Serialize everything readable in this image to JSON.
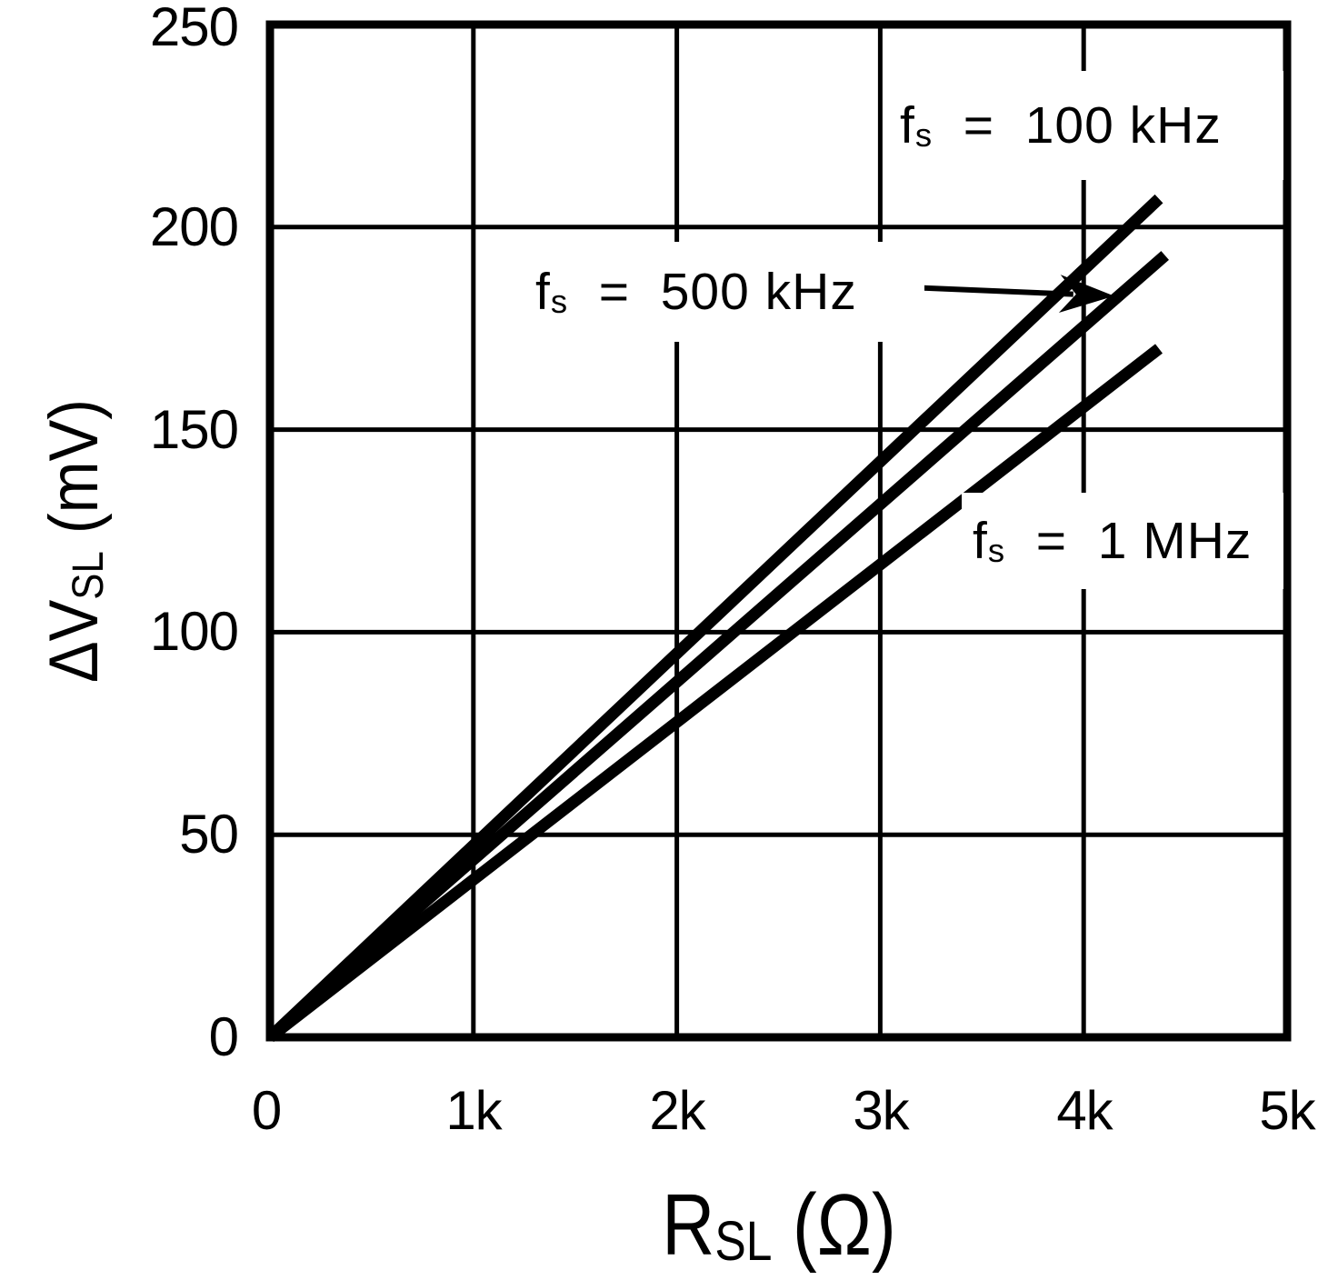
{
  "colors": {
    "ink": "#000000",
    "paper": "#ffffff"
  },
  "chart_data": {
    "type": "line",
    "title": "",
    "xlabel": "R_SL (Ω)",
    "ylabel": "ΔV_SL (mV)",
    "xlabel_parts": {
      "main": "R",
      "sub": "SL",
      "rest": " (Ω)"
    },
    "ylabel_parts": {
      "main": "ΔV",
      "sub": "SL",
      "rest": " (mV)"
    },
    "xlim": [
      0,
      5000
    ],
    "ylim": [
      0,
      250
    ],
    "x_ticks": [
      0,
      1000,
      2000,
      3000,
      4000,
      5000
    ],
    "x_tick_labels": [
      "0",
      "1k",
      "2k",
      "3k",
      "4k",
      "5k"
    ],
    "y_ticks": [
      0,
      50,
      100,
      150,
      200,
      250
    ],
    "y_tick_labels": [
      "0",
      "50",
      "100",
      "150",
      "200",
      "250"
    ],
    "grid": true,
    "legend_position": "inline-labels",
    "series": [
      {
        "name": "fs = 100 kHz",
        "label_parts": {
          "sym": "f",
          "sub": "s",
          "eq": "  =  ",
          "value": "100 kHz"
        },
        "x": [
          0,
          4370
        ],
        "y": [
          0,
          207
        ]
      },
      {
        "name": "fs = 500 kHz",
        "label_parts": {
          "sym": "f",
          "sub": "s",
          "eq": "  =  ",
          "value": "500 kHz"
        },
        "x": [
          0,
          4400
        ],
        "y": [
          0,
          193
        ]
      },
      {
        "name": "fs = 1 MHz",
        "label_parts": {
          "sym": "f",
          "sub": "s",
          "eq": "  =  ",
          "value": "1 MHz"
        },
        "x": [
          0,
          4370
        ],
        "y": [
          0,
          170
        ]
      }
    ],
    "annotations": [
      {
        "type": "arrow",
        "target_series": "fs = 500 kHz",
        "from_xy": [
          3200,
          185
        ],
        "to_xy": [
          4150,
          183
        ]
      }
    ]
  }
}
